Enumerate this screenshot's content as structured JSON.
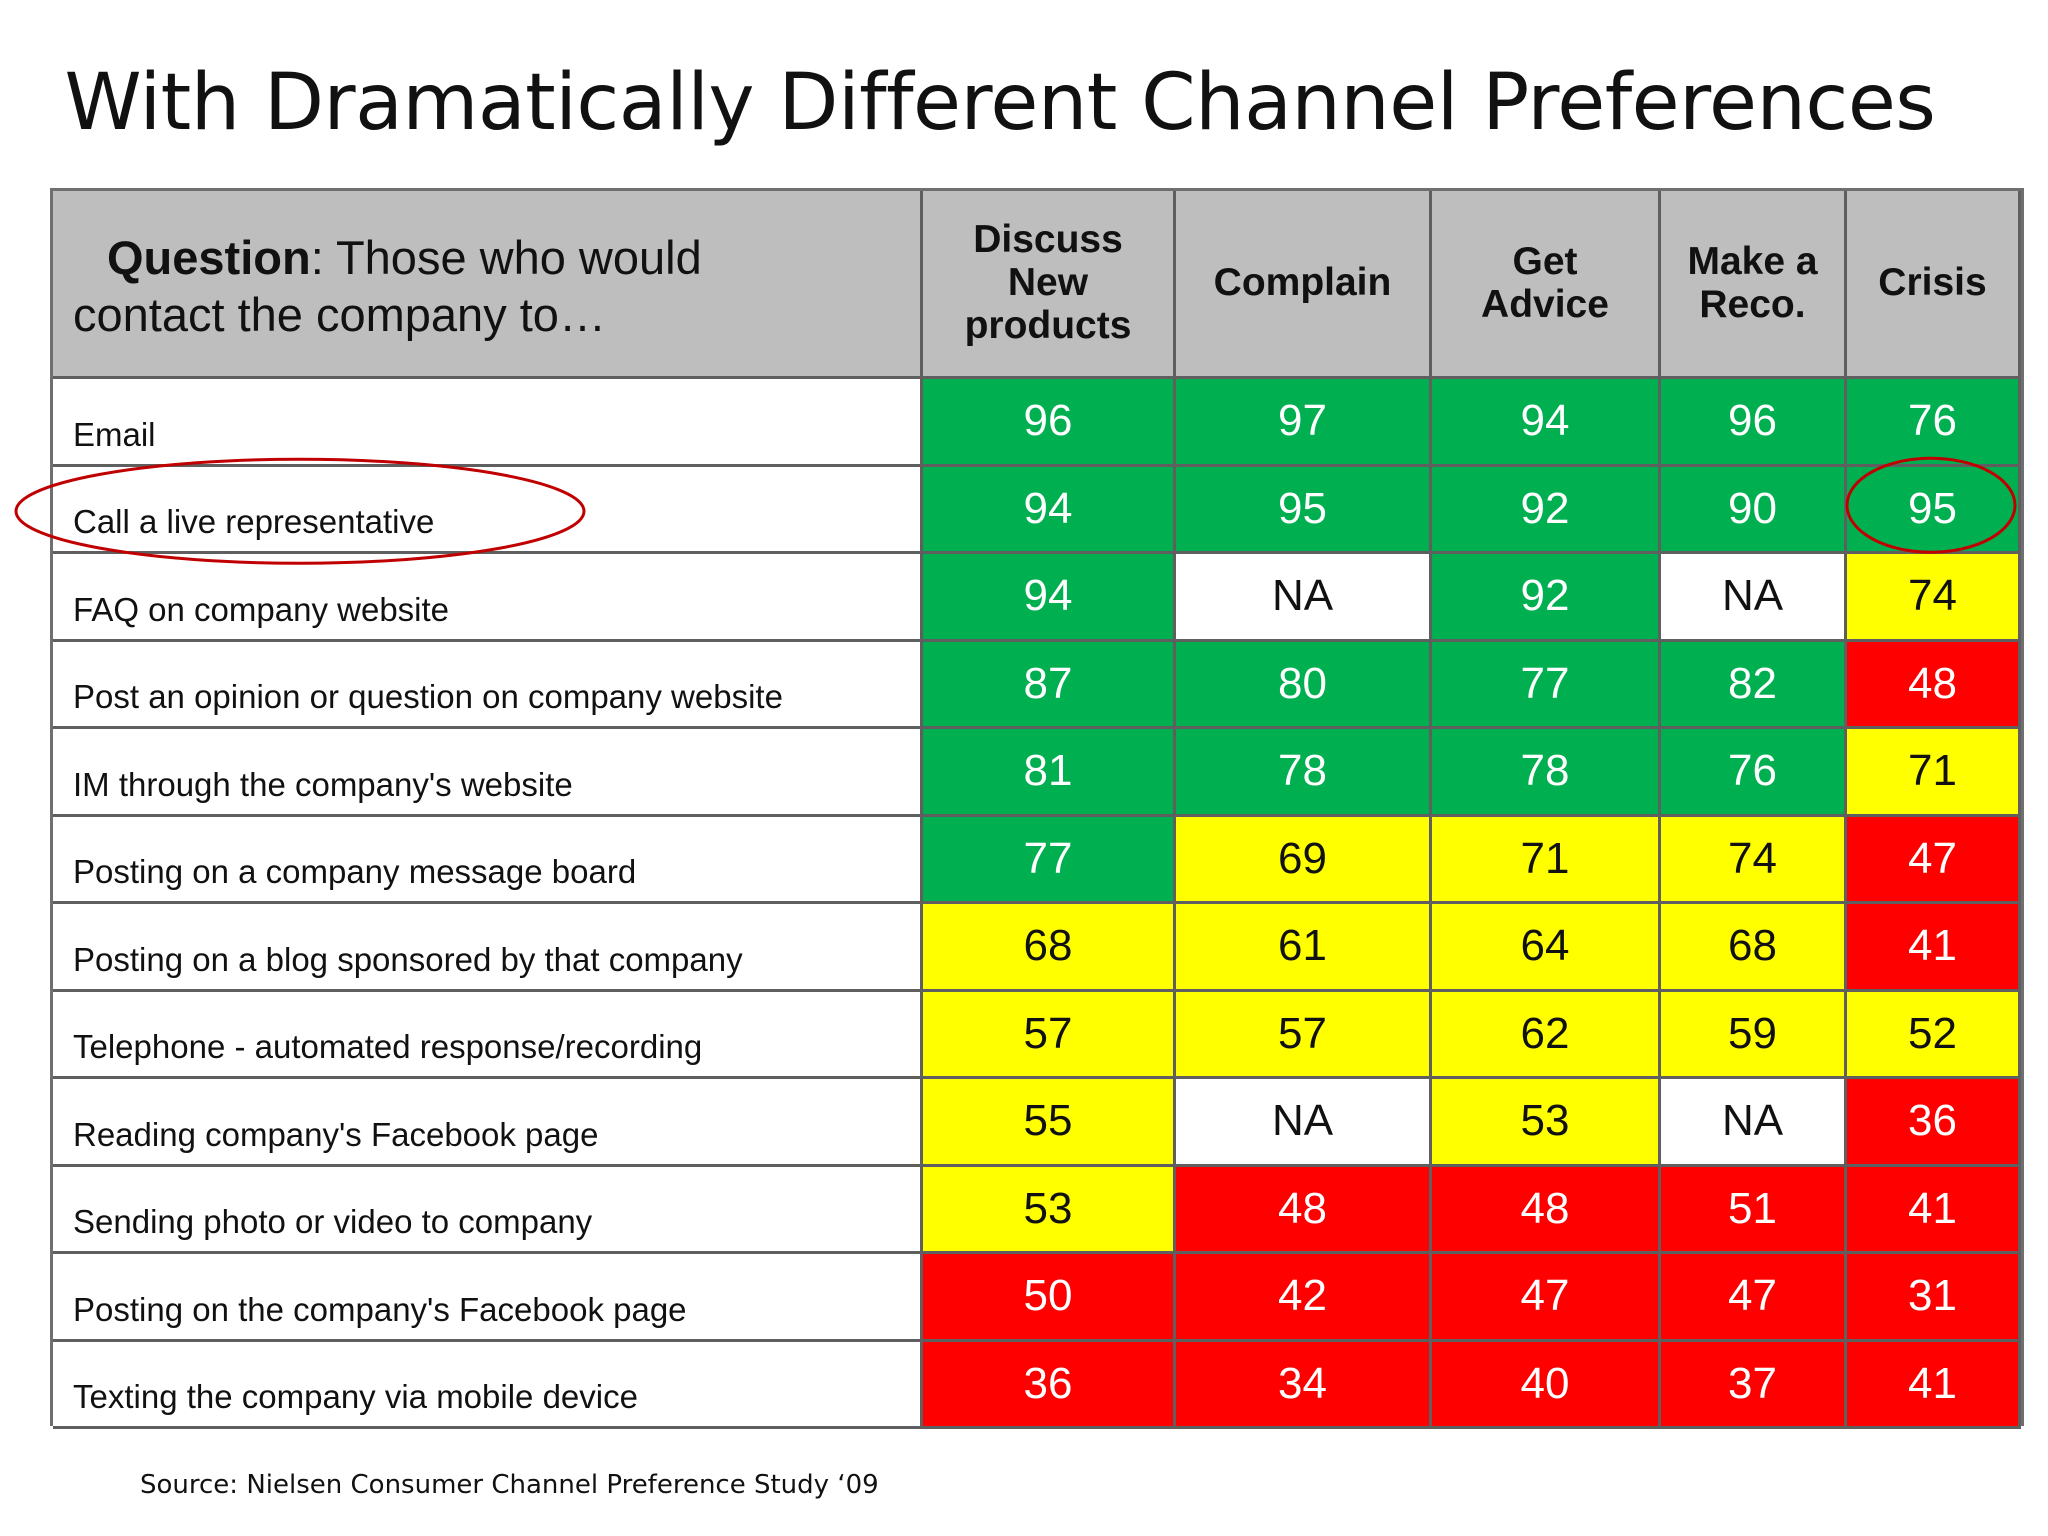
{
  "title": "With Dramatically Different Channel Preferences",
  "source": "Source: Nielsen Consumer Channel Preference Study ‘09",
  "colors": {
    "green": "#00b050",
    "yellow": "#ffff00",
    "red": "#ff0000",
    "header": "#bebebe",
    "circle": "#c00000"
  },
  "chart_data": {
    "type": "table",
    "question_bold": "Question",
    "question_rest_line1": ": Those who would",
    "question_line2": "contact  the company to…",
    "columns": [
      [
        "Discuss",
        "New",
        "products"
      ],
      [
        "Complain"
      ],
      [
        "Get",
        "Advice"
      ],
      [
        "Make a",
        "Reco."
      ],
      [
        "Crisis"
      ]
    ],
    "rows": [
      {
        "label": "Email",
        "values": [
          "96",
          "97",
          "94",
          "96",
          "76"
        ],
        "colors": [
          "green",
          "green",
          "green",
          "green",
          "green"
        ]
      },
      {
        "label": "Call a live representative",
        "values": [
          "94",
          "95",
          "92",
          "90",
          "95"
        ],
        "colors": [
          "green",
          "green",
          "green",
          "green",
          "green"
        ]
      },
      {
        "label": "FAQ on company website",
        "values": [
          "94",
          "NA",
          "92",
          "NA",
          "74"
        ],
        "colors": [
          "green",
          "na",
          "green",
          "na",
          "yellow"
        ]
      },
      {
        "label": "Post an opinion or question on company website",
        "values": [
          "87",
          "80",
          "77",
          "82",
          "48"
        ],
        "colors": [
          "green",
          "green",
          "green",
          "green",
          "red"
        ]
      },
      {
        "label": "IM through the company's website",
        "values": [
          "81",
          "78",
          "78",
          "76",
          "71"
        ],
        "colors": [
          "green",
          "green",
          "green",
          "green",
          "yellow"
        ]
      },
      {
        "label": "Posting on a company message board",
        "values": [
          "77",
          "69",
          "71",
          "74",
          "47"
        ],
        "colors": [
          "green",
          "yellow",
          "yellow",
          "yellow",
          "red"
        ]
      },
      {
        "label": "Posting on a blog sponsored by that company",
        "values": [
          "68",
          "61",
          "64",
          "68",
          "41"
        ],
        "colors": [
          "yellow",
          "yellow",
          "yellow",
          "yellow",
          "red"
        ]
      },
      {
        "label": "Telephone - automated response/recording",
        "values": [
          "57",
          "57",
          "62",
          "59",
          "52"
        ],
        "colors": [
          "yellow",
          "yellow",
          "yellow",
          "yellow",
          "yellow"
        ]
      },
      {
        "label": "Reading company's Facebook page",
        "values": [
          "55",
          "NA",
          "53",
          "NA",
          "36"
        ],
        "colors": [
          "yellow",
          "na",
          "yellow",
          "na",
          "red"
        ]
      },
      {
        "label": "Sending photo or video to  company",
        "values": [
          "53",
          "48",
          "48",
          "51",
          "41"
        ],
        "colors": [
          "yellow",
          "red",
          "red",
          "red",
          "red"
        ]
      },
      {
        "label": "Posting on the company's Facebook page",
        "values": [
          "50",
          "42",
          "47",
          "47",
          "31"
        ],
        "colors": [
          "red",
          "red",
          "red",
          "red",
          "red"
        ]
      },
      {
        "label": "Texting the company via mobile device",
        "values": [
          "36",
          "34",
          "40",
          "37",
          "41"
        ],
        "colors": [
          "red",
          "red",
          "red",
          "red",
          "red"
        ]
      }
    ],
    "highlights": [
      {
        "row": 1,
        "target": "label"
      },
      {
        "row": 1,
        "target": "value",
        "col": 4
      }
    ]
  }
}
